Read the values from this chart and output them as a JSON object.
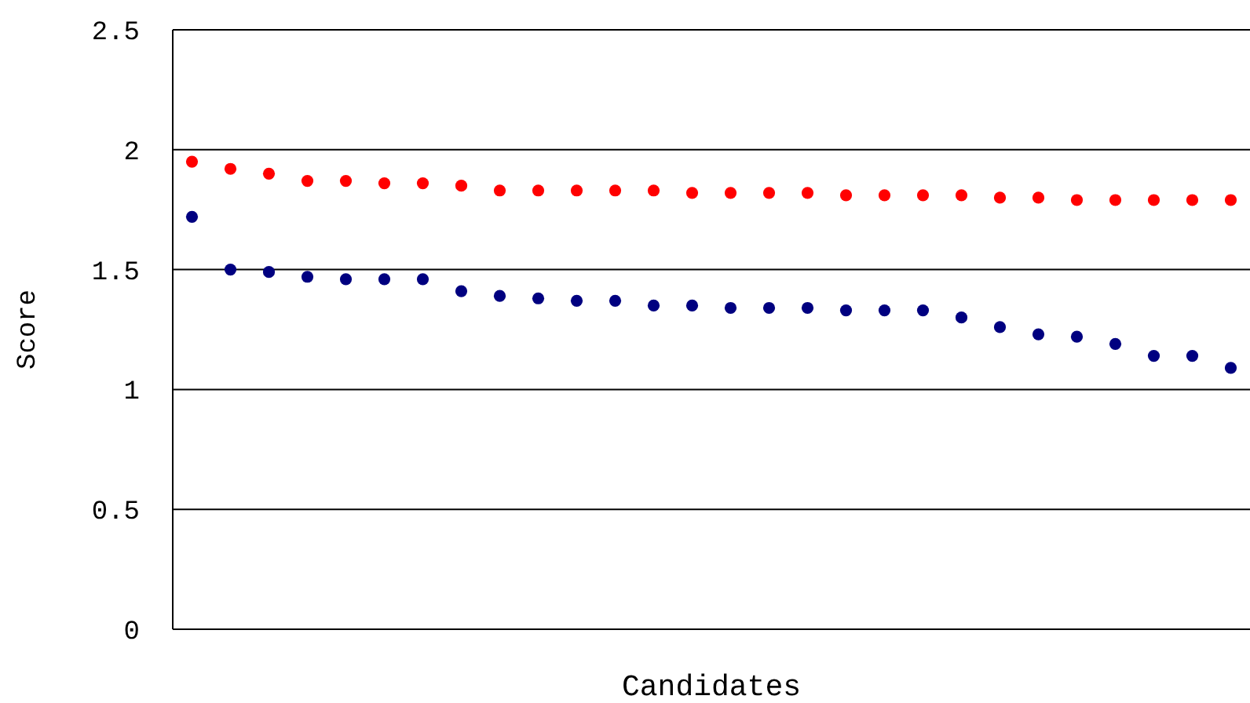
{
  "chart_data": {
    "type": "scatter",
    "xlabel": "Candidates",
    "ylabel": "Score",
    "categories": [
      null,
      null,
      null,
      null,
      null,
      null,
      null,
      null,
      null,
      null,
      null,
      null,
      null,
      null,
      null,
      null,
      null,
      null,
      null,
      null,
      null,
      null,
      null,
      null,
      null,
      null,
      null,
      null
    ],
    "series": [
      {
        "color": "#ff0000",
        "values": [
          1.95,
          1.92,
          1.9,
          1.87,
          1.87,
          1.86,
          1.86,
          1.85,
          1.83,
          1.83,
          1.83,
          1.83,
          1.83,
          1.82,
          1.82,
          1.82,
          1.82,
          1.81,
          1.81,
          1.81,
          1.81,
          1.8,
          1.8,
          1.79,
          1.79,
          1.79,
          1.79,
          1.79
        ]
      },
      {
        "color": "#000080",
        "values": [
          1.72,
          1.5,
          1.49,
          1.47,
          1.46,
          1.46,
          1.46,
          1.41,
          1.39,
          1.38,
          1.37,
          1.37,
          1.35,
          1.35,
          1.34,
          1.34,
          1.34,
          1.33,
          1.33,
          1.33,
          1.3,
          1.26,
          1.23,
          1.22,
          1.19,
          1.14,
          1.14,
          1.09
        ]
      }
    ],
    "ylim": [
      0,
      2.5
    ],
    "yticks": [
      0,
      0.5,
      1,
      1.5,
      2,
      2.5
    ],
    "grid": "y",
    "marker": "circle"
  }
}
